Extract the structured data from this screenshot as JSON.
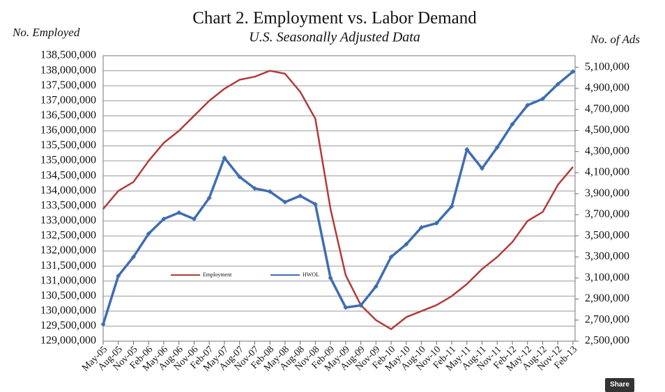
{
  "chart_data": {
    "type": "line",
    "title": "Chart 2. Employment vs. Labor Demand",
    "subtitle": "U.S. Seasonally Adjusted Data",
    "y_label": "No. Employed",
    "y2_label": "No. of Ads",
    "categories": [
      "May-05",
      "Aug-05",
      "Nov-05",
      "Feb-06",
      "May-06",
      "Aug-06",
      "Nov-06",
      "Feb-07",
      "May-07",
      "Aug-07",
      "Nov-07",
      "Feb-08",
      "May-08",
      "Aug-08",
      "Nov-08",
      "Feb-09",
      "May-09",
      "Aug-09",
      "Nov-09",
      "Feb-10",
      "May-10",
      "Aug-10",
      "Nov-10",
      "Feb-11",
      "May-11",
      "Aug-11",
      "Nov-11",
      "Feb-12",
      "May-12",
      "Aug-12",
      "Nov-12",
      "Feb-13"
    ],
    "series": [
      {
        "name": "Employment",
        "color": "#b23a3a",
        "axis": "y",
        "values": [
          133400000,
          134000000,
          134300000,
          135000000,
          135600000,
          136000000,
          136500000,
          137000000,
          137400000,
          137700000,
          137800000,
          138000000,
          137900000,
          137300000,
          136400000,
          133400000,
          131200000,
          130200000,
          129700000,
          129400000,
          129800000,
          130000000,
          130200000,
          130500000,
          130900000,
          131400000,
          131800000,
          132300000,
          133000000,
          133300000,
          134200000,
          134800000
        ]
      },
      {
        "name": "HWOL",
        "color": "#3e6db3",
        "axis": "y2",
        "values": [
          2660000,
          3120000,
          3300000,
          3520000,
          3660000,
          3720000,
          3660000,
          3860000,
          4240000,
          4060000,
          3950000,
          3920000,
          3820000,
          3880000,
          3800000,
          3100000,
          2820000,
          2840000,
          3020000,
          3300000,
          3420000,
          3580000,
          3620000,
          3780000,
          4320000,
          4140000,
          4340000,
          4560000,
          4740000,
          4800000,
          4940000,
          5060000
        ]
      }
    ],
    "ylim": [
      129000000,
      138500000
    ],
    "yticks": [
      {
        "value": 129000000,
        "label": "129,000,000"
      },
      {
        "value": 129500000,
        "label": "129,500,000"
      },
      {
        "value": 130000000,
        "label": "130,000,000"
      },
      {
        "value": 130500000,
        "label": "130,500,000"
      },
      {
        "value": 131000000,
        "label": "131,000,000"
      },
      {
        "value": 131500000,
        "label": "131,500,000"
      },
      {
        "value": 132000000,
        "label": "132,000,000"
      },
      {
        "value": 132500000,
        "label": "132,500,000"
      },
      {
        "value": 133000000,
        "label": "133,000,000"
      },
      {
        "value": 133500000,
        "label": "133,500,000"
      },
      {
        "value": 134000000,
        "label": "134,000,000"
      },
      {
        "value": 134500000,
        "label": "134,500,000"
      },
      {
        "value": 135000000,
        "label": "135,000,000"
      },
      {
        "value": 135500000,
        "label": "135,500,000"
      },
      {
        "value": 136000000,
        "label": "136,000,000"
      },
      {
        "value": 136500000,
        "label": "136,500,000"
      },
      {
        "value": 137000000,
        "label": "137,000,000"
      },
      {
        "value": 137500000,
        "label": "137,500,000"
      },
      {
        "value": 138000000,
        "label": "138,000,000"
      },
      {
        "value": 138500000,
        "label": "138,500,000"
      }
    ],
    "y2lim": [
      2500000,
      5210000
    ],
    "y2ticks": [
      {
        "value": 2500000,
        "label": "2,500,000"
      },
      {
        "value": 2700000,
        "label": "2,700,000"
      },
      {
        "value": 2900000,
        "label": "2,900,000"
      },
      {
        "value": 3100000,
        "label": "3,100,000"
      },
      {
        "value": 3300000,
        "label": "3,300,000"
      },
      {
        "value": 3500000,
        "label": "3,500,000"
      },
      {
        "value": 3700000,
        "label": "3,700,000"
      },
      {
        "value": 3900000,
        "label": "3,900,000"
      },
      {
        "value": 4100000,
        "label": "4,100,000"
      },
      {
        "value": 4300000,
        "label": "4,300,000"
      },
      {
        "value": 4500000,
        "label": "4,500,000"
      },
      {
        "value": 4700000,
        "label": "4,700,000"
      },
      {
        "value": 4900000,
        "label": "4,900,000"
      },
      {
        "value": 5100000,
        "label": "5,100,000"
      }
    ],
    "grid": true,
    "legend": "center",
    "share": "Share"
  }
}
